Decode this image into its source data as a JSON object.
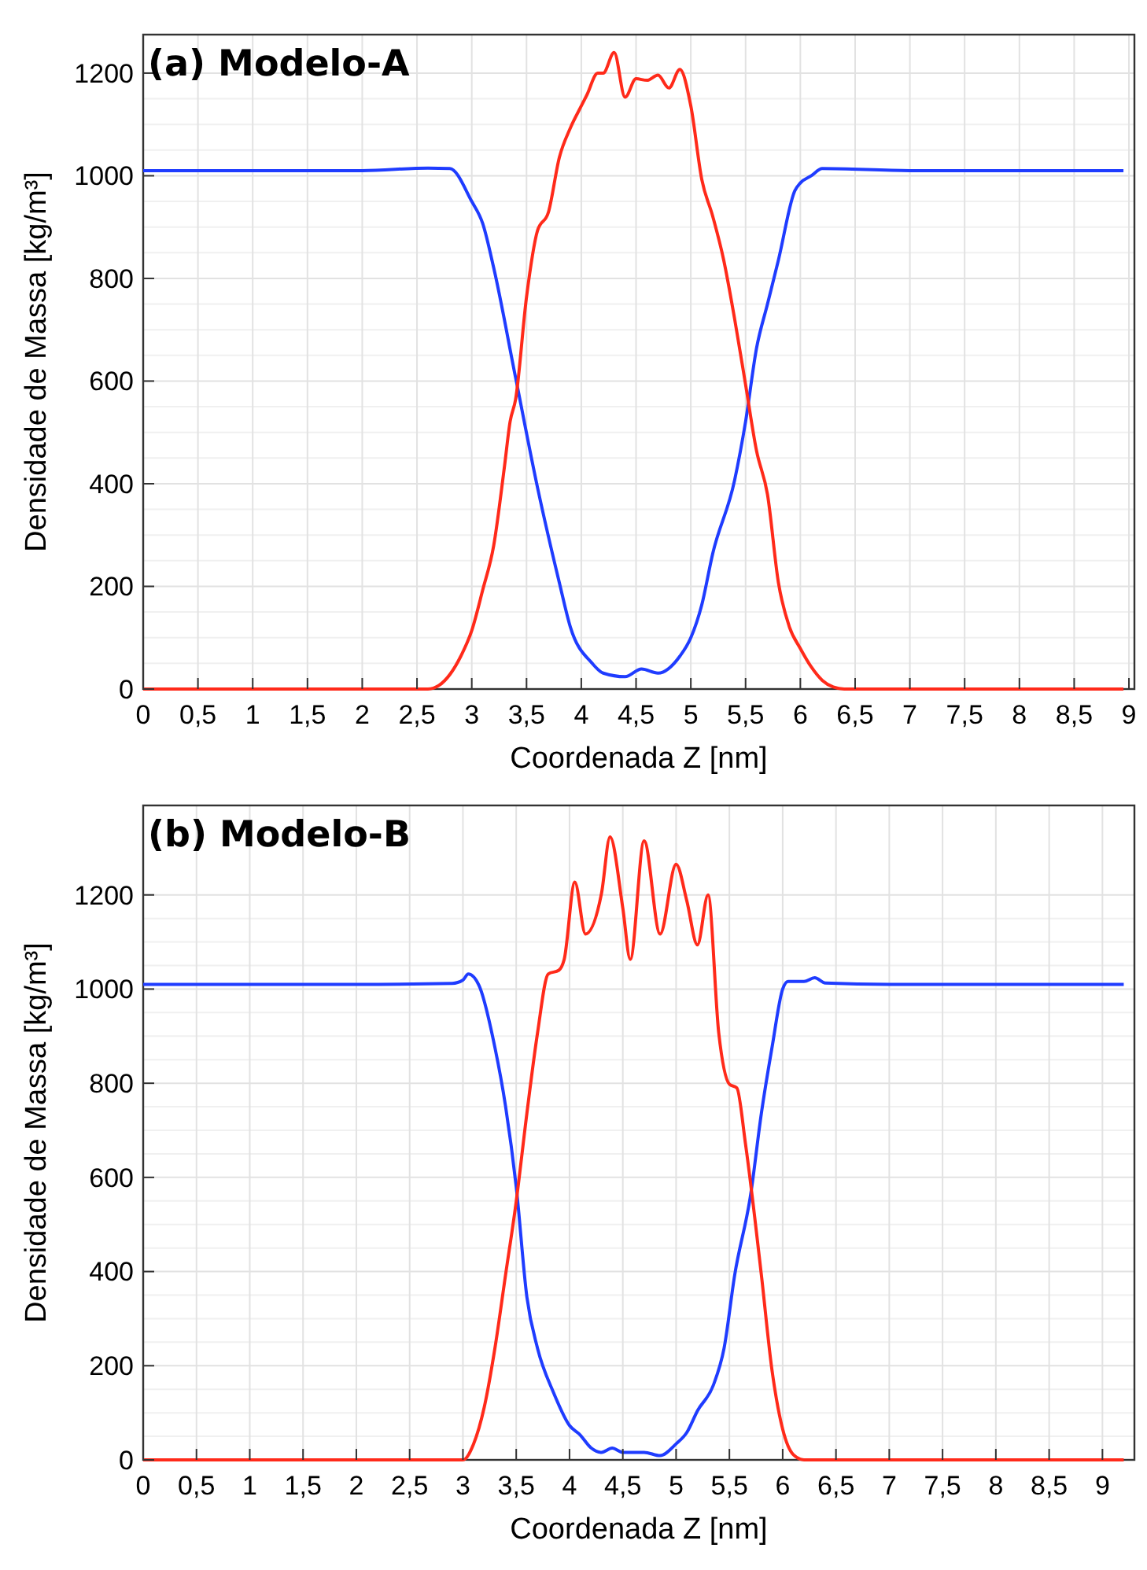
{
  "chart_data": [
    {
      "type": "line",
      "title": "(a) Modelo-A",
      "xlabel": "Coordenada Z [nm]",
      "ylabel": "Densidade de Massa [kg/m³]",
      "xlim": [
        0,
        9.05
      ],
      "ylim": [
        0,
        1275
      ],
      "xticks": [
        0,
        {
          "value": 0.5,
          "label": "0,5"
        },
        1,
        {
          "value": 1.5,
          "label": "1,5"
        },
        2,
        {
          "value": 2.5,
          "label": "2,5"
        },
        3,
        {
          "value": 3.5,
          "label": "3,5"
        },
        4,
        {
          "value": 4.5,
          "label": "4,5"
        },
        5,
        {
          "value": 5.5,
          "label": "5,5"
        },
        6,
        {
          "value": 6.5,
          "label": "6,5"
        },
        7,
        {
          "value": 7.5,
          "label": "7,5"
        },
        8,
        {
          "value": 8.5,
          "label": "8,5"
        },
        9
      ],
      "yticks": [
        0,
        200,
        400,
        600,
        800,
        1000,
        1200
      ],
      "grid": true,
      "marker": "none",
      "line_style": "solid",
      "series": [
        {
          "color": "#1f3cff",
          "x": [
            0,
            1,
            2,
            2.6,
            2.8,
            3.0,
            3.1,
            3.2,
            3.4,
            3.6,
            3.8,
            3.9,
            4.1,
            4.2,
            4.4,
            4.55,
            4.7,
            4.9,
            5.0,
            5.1,
            5.2,
            5.4,
            5.5,
            5.6,
            5.7,
            5.8,
            5.95,
            6.0,
            6.1,
            6.2,
            7,
            8,
            8.95
          ],
          "values": [
            1010,
            1010,
            1010,
            1015,
            1014,
            950,
            907,
            821,
            607,
            393,
            207,
            121,
            50,
            31,
            24,
            39,
            31,
            64,
            100,
            164,
            264,
            407,
            521,
            664,
            750,
            836,
            971,
            986,
            1000,
            1014,
            1010,
            1010,
            1010
          ]
        },
        {
          "color": "#ff2a1a",
          "x": [
            0,
            1,
            2,
            2.6,
            2.7,
            2.9,
            3.0,
            3.1,
            3.2,
            3.3,
            3.35,
            3.4,
            3.5,
            3.6,
            3.7,
            3.8,
            3.9,
            4.0,
            4.05,
            4.15,
            4.2,
            4.3,
            4.4,
            4.5,
            4.6,
            4.7,
            4.8,
            4.9,
            5.0,
            5.1,
            5.2,
            5.3,
            5.4,
            5.5,
            5.6,
            5.7,
            5.8,
            5.9,
            6.0,
            6.1,
            6.2,
            6.3,
            6.4,
            7,
            8,
            8.95
          ],
          "values": [
            0,
            0,
            0,
            0,
            7,
            64,
            114,
            193,
            279,
            436,
            521,
            564,
            764,
            893,
            929,
            1036,
            1093,
            1136,
            1157,
            1200,
            1200,
            1240,
            1153,
            1189,
            1186,
            1196,
            1171,
            1207,
            1136,
            993,
            921,
            836,
            721,
            593,
            464,
            379,
            207,
            121,
            79,
            43,
            17,
            4,
            0,
            0,
            0,
            0
          ]
        }
      ]
    },
    {
      "type": "line",
      "title": "(b) Modelo-B",
      "xlabel": "Coordenada Z [nm]",
      "ylabel": "Densidade de Massa [kg/m³]",
      "xlim": [
        0,
        9.3
      ],
      "ylim": [
        0,
        1390
      ],
      "xticks": [
        0,
        {
          "value": 0.5,
          "label": "0,5"
        },
        1,
        {
          "value": 1.5,
          "label": "1,5"
        },
        2,
        {
          "value": 2.5,
          "label": "2,5"
        },
        3,
        {
          "value": 3.5,
          "label": "3,5"
        },
        4,
        {
          "value": 4.5,
          "label": "4,5"
        },
        5,
        {
          "value": 5.5,
          "label": "5,5"
        },
        6,
        {
          "value": 6.5,
          "label": "6,5"
        },
        7,
        {
          "value": 7.5,
          "label": "7,5"
        },
        8,
        {
          "value": 8.5,
          "label": "8,5"
        },
        9
      ],
      "yticks": [
        0,
        200,
        400,
        600,
        800,
        1000,
        1200
      ],
      "grid": true,
      "marker": "none",
      "line_style": "solid",
      "series": [
        {
          "color": "#1f3cff",
          "x": [
            0,
            1,
            2,
            2.9,
            3.0,
            3.05,
            3.15,
            3.3,
            3.4,
            3.5,
            3.6,
            3.7,
            3.85,
            4.0,
            4.1,
            4.2,
            4.3,
            4.4,
            4.5,
            4.7,
            4.85,
            5.0,
            5.1,
            5.2,
            5.35,
            5.45,
            5.55,
            5.7,
            5.8,
            5.9,
            6.0,
            6.05,
            6.2,
            6.3,
            6.4,
            7,
            8,
            9.2
          ],
          "values": [
            1010,
            1010,
            1010,
            1012,
            1019,
            1032,
            1008,
            876,
            751,
            580,
            346,
            237,
            143,
            73,
            53,
            26,
            16,
            25,
            16,
            16,
            9,
            34,
            58,
            104,
            159,
            237,
            393,
            564,
            736,
            876,
            1000,
            1016,
            1016,
            1024,
            1013,
            1010,
            1010,
            1010
          ]
        },
        {
          "color": "#ff2a1a",
          "x": [
            0,
            1,
            2,
            3.0,
            3.1,
            3.2,
            3.3,
            3.4,
            3.5,
            3.6,
            3.7,
            3.8,
            3.9,
            3.95,
            4.05,
            4.15,
            4.3,
            4.38,
            4.5,
            4.57,
            4.7,
            4.85,
            5.0,
            5.1,
            5.2,
            5.3,
            5.4,
            5.5,
            5.57,
            5.65,
            5.8,
            5.9,
            6.0,
            6.1,
            6.2,
            7,
            8,
            9.2
          ],
          "values": [
            0,
            0,
            0,
            0,
            34,
            112,
            237,
            393,
            549,
            736,
            907,
            1032,
            1040,
            1063,
            1227,
            1117,
            1203,
            1323,
            1172,
            1063,
            1315,
            1117,
            1265,
            1188,
            1094,
            1200,
            907,
            798,
            790,
            673,
            393,
            190,
            65,
            11,
            0,
            0,
            0,
            0
          ]
        }
      ]
    }
  ]
}
